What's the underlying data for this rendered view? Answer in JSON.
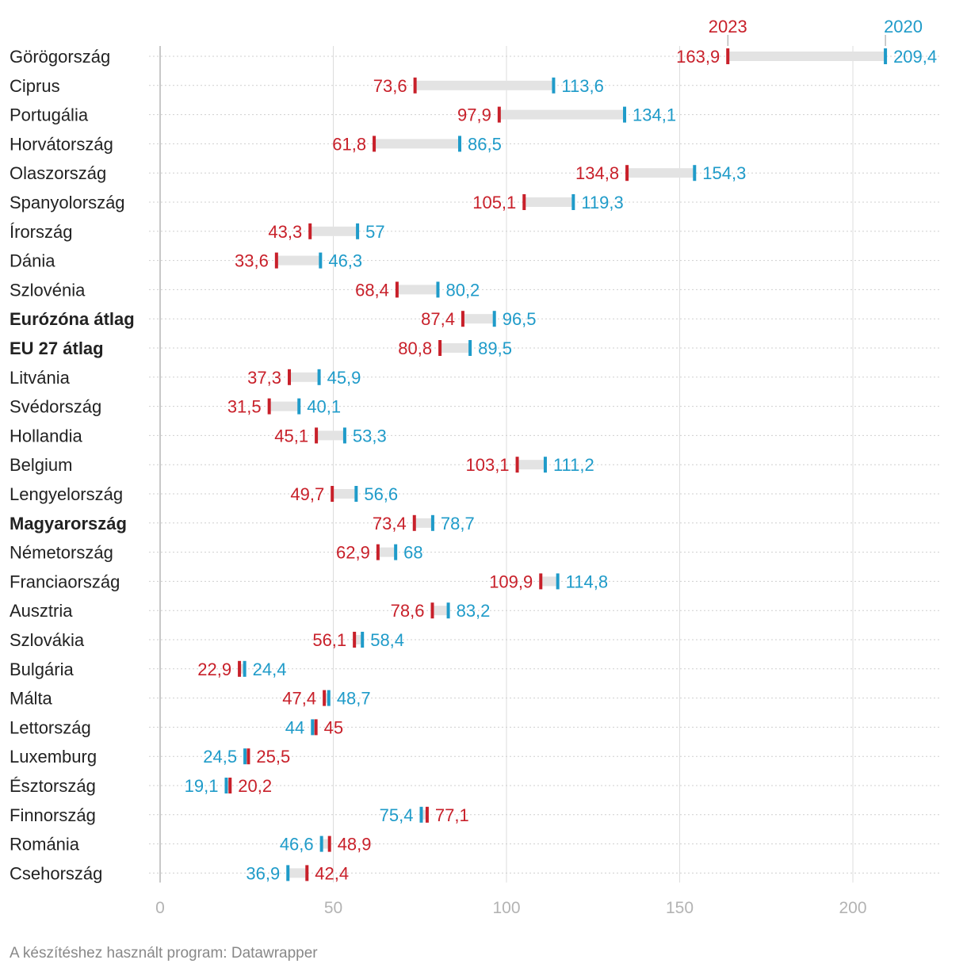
{
  "colors": {
    "y2023": "#c8202a",
    "y2020": "#1f9bc9",
    "range": "#e3e3e3",
    "grid": "#dddddd",
    "axis": "#bbbbbb"
  },
  "footer": "A készítéshez használt program: Datawrapper",
  "chart_data": {
    "type": "dot-range",
    "title": "",
    "xlabel": "",
    "ylabel": "",
    "xlim": [
      0,
      225
    ],
    "xticks": [
      0,
      50,
      100,
      150,
      200
    ],
    "series": [
      {
        "name": "2023",
        "key": "v2023"
      },
      {
        "name": "2020",
        "key": "v2020"
      }
    ],
    "rows": [
      {
        "label": "Görögország",
        "bold": false,
        "v2023": 163.9,
        "v2020": 209.4,
        "t2023": "163,9",
        "t2020": "209,4"
      },
      {
        "label": "Ciprus",
        "bold": false,
        "v2023": 73.6,
        "v2020": 113.6,
        "t2023": "73,6",
        "t2020": "113,6"
      },
      {
        "label": "Portugália",
        "bold": false,
        "v2023": 97.9,
        "v2020": 134.1,
        "t2023": "97,9",
        "t2020": "134,1"
      },
      {
        "label": "Horvátország",
        "bold": false,
        "v2023": 61.8,
        "v2020": 86.5,
        "t2023": "61,8",
        "t2020": "86,5"
      },
      {
        "label": "Olaszország",
        "bold": false,
        "v2023": 134.8,
        "v2020": 154.3,
        "t2023": "134,8",
        "t2020": "154,3"
      },
      {
        "label": "Spanyolország",
        "bold": false,
        "v2023": 105.1,
        "v2020": 119.3,
        "t2023": "105,1",
        "t2020": "119,3"
      },
      {
        "label": "Írország",
        "bold": false,
        "v2023": 43.3,
        "v2020": 57,
        "t2023": "43,3",
        "t2020": "57"
      },
      {
        "label": "Dánia",
        "bold": false,
        "v2023": 33.6,
        "v2020": 46.3,
        "t2023": "33,6",
        "t2020": "46,3"
      },
      {
        "label": "Szlovénia",
        "bold": false,
        "v2023": 68.4,
        "v2020": 80.2,
        "t2023": "68,4",
        "t2020": "80,2"
      },
      {
        "label": "Eurózóna átlag",
        "bold": true,
        "v2023": 87.4,
        "v2020": 96.5,
        "t2023": "87,4",
        "t2020": "96,5"
      },
      {
        "label": "EU 27 átlag",
        "bold": true,
        "v2023": 80.8,
        "v2020": 89.5,
        "t2023": "80,8",
        "t2020": "89,5"
      },
      {
        "label": "Litvánia",
        "bold": false,
        "v2023": 37.3,
        "v2020": 45.9,
        "t2023": "37,3",
        "t2020": "45,9"
      },
      {
        "label": "Svédország",
        "bold": false,
        "v2023": 31.5,
        "v2020": 40.1,
        "t2023": "31,5",
        "t2020": "40,1"
      },
      {
        "label": "Hollandia",
        "bold": false,
        "v2023": 45.1,
        "v2020": 53.3,
        "t2023": "45,1",
        "t2020": "53,3"
      },
      {
        "label": "Belgium",
        "bold": false,
        "v2023": 103.1,
        "v2020": 111.2,
        "t2023": "103,1",
        "t2020": "111,2"
      },
      {
        "label": "Lengyelország",
        "bold": false,
        "v2023": 49.7,
        "v2020": 56.6,
        "t2023": "49,7",
        "t2020": "56,6"
      },
      {
        "label": "Magyarország",
        "bold": true,
        "v2023": 73.4,
        "v2020": 78.7,
        "t2023": "73,4",
        "t2020": "78,7"
      },
      {
        "label": "Németország",
        "bold": false,
        "v2023": 62.9,
        "v2020": 68,
        "t2023": "62,9",
        "t2020": "68"
      },
      {
        "label": "Franciaország",
        "bold": false,
        "v2023": 109.9,
        "v2020": 114.8,
        "t2023": "109,9",
        "t2020": "114,8"
      },
      {
        "label": "Ausztria",
        "bold": false,
        "v2023": 78.6,
        "v2020": 83.2,
        "t2023": "78,6",
        "t2020": "83,2"
      },
      {
        "label": "Szlovákia",
        "bold": false,
        "v2023": 56.1,
        "v2020": 58.4,
        "t2023": "56,1",
        "t2020": "58,4"
      },
      {
        "label": "Bulgária",
        "bold": false,
        "v2023": 22.9,
        "v2020": 24.4,
        "t2023": "22,9",
        "t2020": "24,4"
      },
      {
        "label": "Málta",
        "bold": false,
        "v2023": 47.4,
        "v2020": 48.7,
        "t2023": "47,4",
        "t2020": "48,7"
      },
      {
        "label": "Lettország",
        "bold": false,
        "v2023": 45,
        "v2020": 44,
        "t2023": "45",
        "t2020": "44"
      },
      {
        "label": "Luxemburg",
        "bold": false,
        "v2023": 25.5,
        "v2020": 24.5,
        "t2023": "25,5",
        "t2020": "24,5"
      },
      {
        "label": "Észtország",
        "bold": false,
        "v2023": 20.2,
        "v2020": 19.1,
        "t2023": "20,2",
        "t2020": "19,1"
      },
      {
        "label": "Finnország",
        "bold": false,
        "v2023": 77.1,
        "v2020": 75.4,
        "t2023": "77,1",
        "t2020": "75,4"
      },
      {
        "label": "Románia",
        "bold": false,
        "v2023": 48.9,
        "v2020": 46.6,
        "t2023": "48,9",
        "t2020": "46,6"
      },
      {
        "label": "Csehország",
        "bold": false,
        "v2023": 42.4,
        "v2020": 36.9,
        "t2023": "42,4",
        "t2020": "36,9"
      }
    ]
  }
}
